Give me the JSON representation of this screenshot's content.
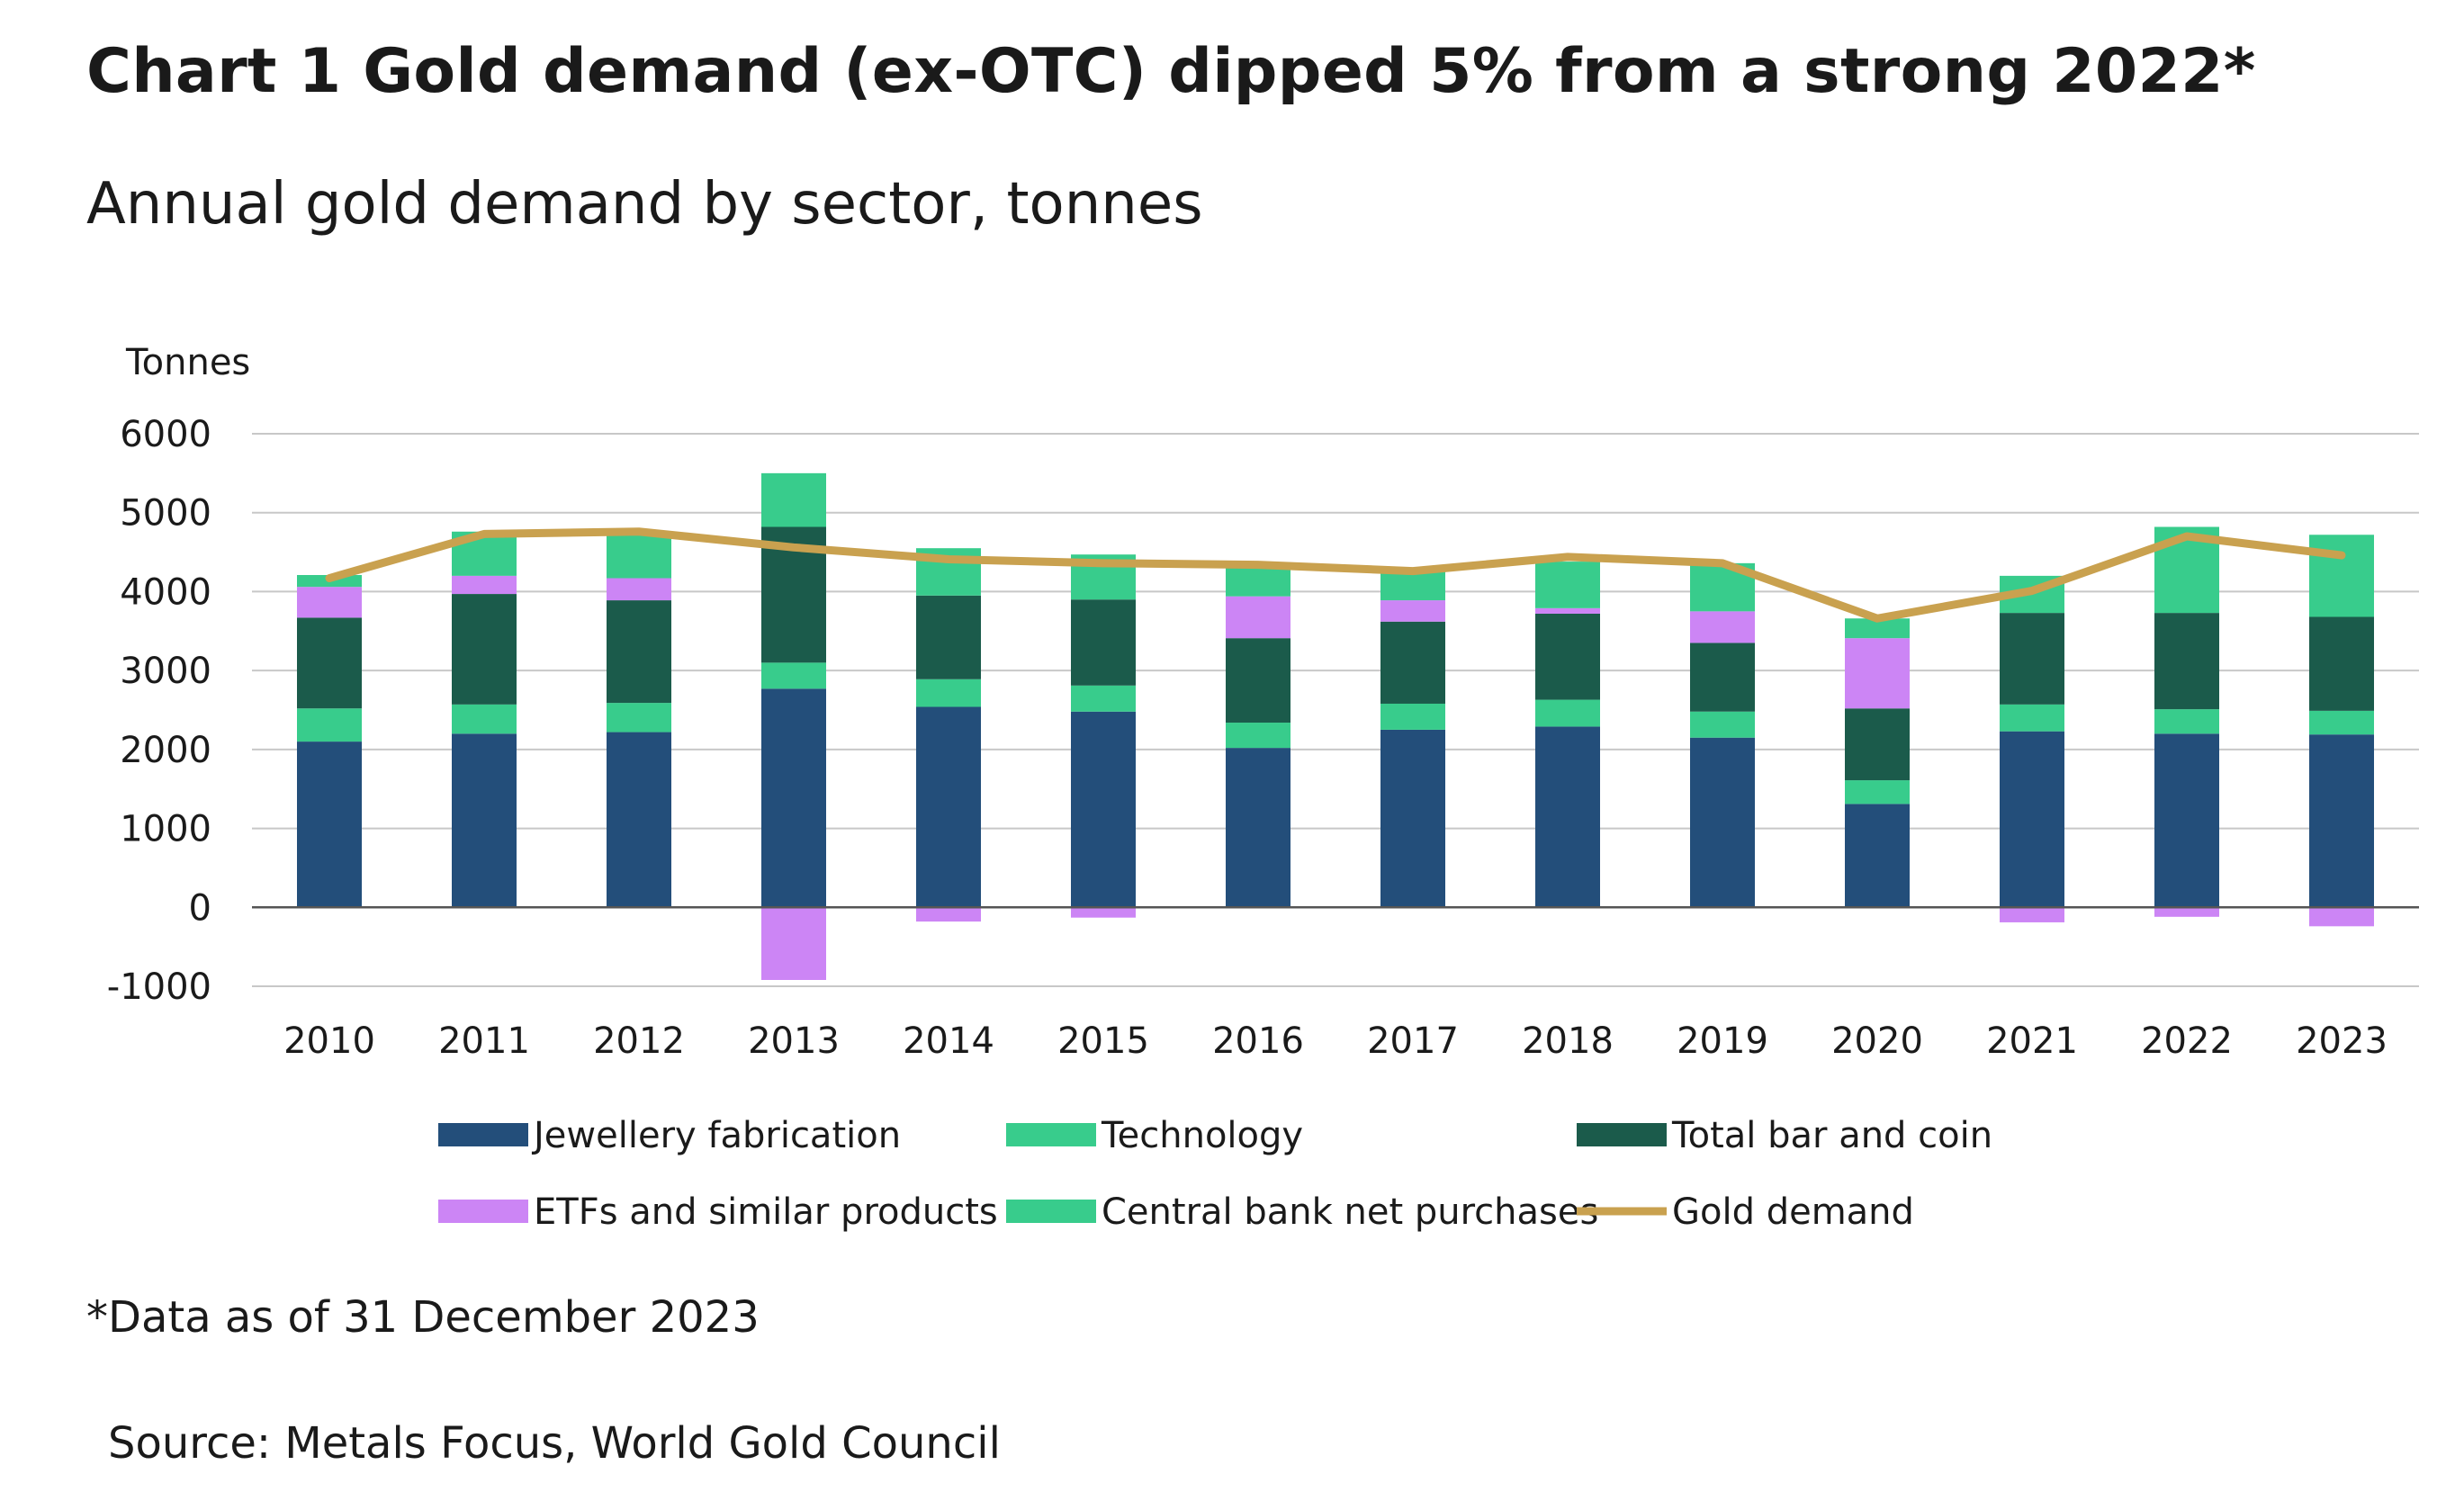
{
  "title": "Chart 1 Gold demand (ex-OTC) dipped 5% from a strong 2022*",
  "subtitle": "Annual gold demand by sector, tonnes",
  "footnote": "*Data as of 31 December 2023",
  "source": "Source: Metals Focus, World Gold Council",
  "chart_data": {
    "type": "bar",
    "stacked": true,
    "title": "Chart 1 Gold demand (ex-OTC) dipped 5% from a strong 2022*",
    "subtitle": "Annual gold demand by sector, tonnes",
    "ylabel": "Tonnes",
    "xlabel": "",
    "ylim": [
      -1000,
      6000
    ],
    "yticks": [
      6000,
      5000,
      4000,
      3000,
      2000,
      1000,
      0,
      -1000
    ],
    "grid": true,
    "legend_position": "bottom",
    "categories": [
      "2010",
      "2011",
      "2012",
      "2013",
      "2014",
      "2015",
      "2016",
      "2017",
      "2018",
      "2019",
      "2020",
      "2021",
      "2022",
      "2023"
    ],
    "series": [
      {
        "name": "Jewellery fabrication",
        "kind": "bar",
        "color": "#234e7a",
        "values": [
          2100,
          2200,
          2220,
          2770,
          2540,
          2480,
          2020,
          2250,
          2290,
          2150,
          1310,
          2230,
          2200,
          2190
        ]
      },
      {
        "name": "Technology",
        "kind": "bar",
        "color": "#38cc8c",
        "values": [
          420,
          370,
          370,
          330,
          350,
          330,
          320,
          330,
          340,
          330,
          300,
          340,
          310,
          300
        ]
      },
      {
        "name": "Total bar and coin",
        "kind": "bar",
        "color": "#1b5b4b",
        "values": [
          1150,
          1400,
          1300,
          1720,
          1060,
          1090,
          1070,
          1040,
          1090,
          870,
          910,
          1160,
          1220,
          1190
        ]
      },
      {
        "name": "ETFs and similar products",
        "kind": "bar",
        "color": "#cc85f5",
        "values": [
          390,
          230,
          280,
          -920,
          -180,
          -130,
          530,
          270,
          70,
          400,
          890,
          -190,
          -120,
          -240
        ]
      },
      {
        "name": "Central bank net purchases",
        "kind": "bar",
        "color": "#38cc8c",
        "values": [
          150,
          560,
          590,
          680,
          600,
          570,
          400,
          360,
          590,
          610,
          250,
          470,
          1090,
          1040
        ]
      },
      {
        "name": "Gold demand",
        "kind": "line",
        "color": "#c9a14f",
        "values": [
          4170,
          4730,
          4760,
          4560,
          4410,
          4360,
          4340,
          4260,
          4440,
          4360,
          3660,
          4010,
          4700,
          4460
        ]
      }
    ],
    "legend": [
      [
        "Jewellery fabrication",
        "Technology",
        "Total bar and coin"
      ],
      [
        "ETFs and similar products",
        "Central bank net purchases",
        "Gold demand"
      ]
    ]
  }
}
